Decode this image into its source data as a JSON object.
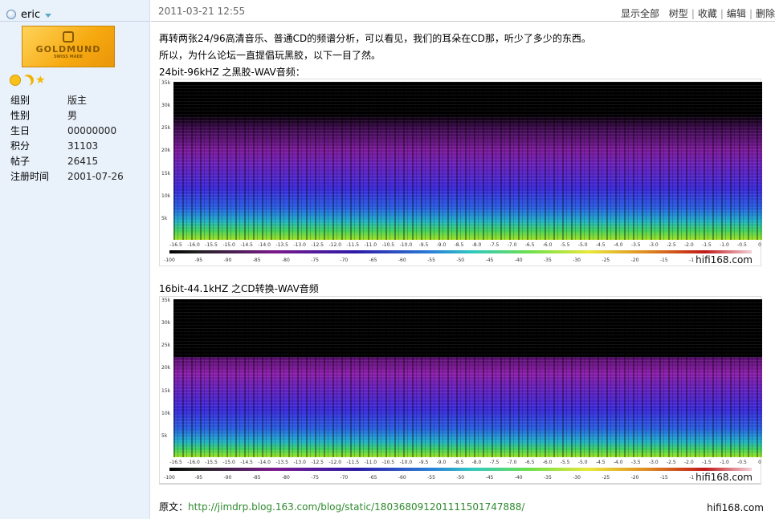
{
  "user": {
    "name": "eric",
    "logo_text": "GOLDMUND",
    "logo_sub": "SWISS MADE",
    "fields": [
      {
        "label": "组别",
        "value": "版主"
      },
      {
        "label": "性别",
        "value": "男"
      },
      {
        "label": "生日",
        "value": "00000000"
      },
      {
        "label": "积分",
        "value": "31103"
      },
      {
        "label": "帖子",
        "value": "26415"
      },
      {
        "label": "注册时间",
        "value": "2001-07-26"
      }
    ],
    "rank_icons": [
      "smiley-icon",
      "moon-icon",
      "star-icon"
    ]
  },
  "post": {
    "date": "2011-03-21 12:55",
    "actions": [
      "显示全部",
      "树型",
      "收藏",
      "编辑",
      "删除"
    ],
    "lines": [
      "再转两张24/96高清音乐、普通CD的频谱分析，可以看见，我们的耳朵在CD那，听少了多少的东西。",
      "所以，为什么论坛一直提倡玩黑胶，以下一目了然。"
    ],
    "caption1": "24bit-96kHZ 之黑胶-WAV音频：",
    "caption2": "16bit-44.1kHZ 之CD转换-WAV音频",
    "source_label": "原文：",
    "source_url": "http://jimdrp.blog.163.com/blog/static/180368091201111501747888/",
    "watermark": "hifi168.com"
  },
  "spectrogram": {
    "y_ticks": [
      "35k",
      "30k",
      "25k",
      "20k",
      "15k",
      "10k",
      "5k"
    ],
    "x_ticks": [
      "-16.5",
      "-16.0",
      "-15.5",
      "-15.0",
      "-14.5",
      "-14.0",
      "-13.5",
      "-13.0",
      "-12.5",
      "-12.0",
      "-11.5",
      "-11.0",
      "-10.5",
      "-10.0",
      "-9.5",
      "-9.0",
      "-8.5",
      "-8.0",
      "-7.5",
      "-7.0",
      "-6.5",
      "-6.0",
      "-5.5",
      "-5.0",
      "-4.5",
      "-4.0",
      "-3.5",
      "-3.0",
      "-2.5",
      "-2.0",
      "-1.5",
      "-1.0",
      "-0.5",
      "0"
    ],
    "color_ticks": [
      "-100",
      "-95",
      "-90",
      "-85",
      "-80",
      "-75",
      "-70",
      "-65",
      "-60",
      "-55",
      "-50",
      "-45",
      "-40",
      "-35",
      "-30",
      "-25",
      "-20",
      "-15",
      "-10"
    ],
    "cutoff_khz": [
      25,
      22
    ]
  }
}
